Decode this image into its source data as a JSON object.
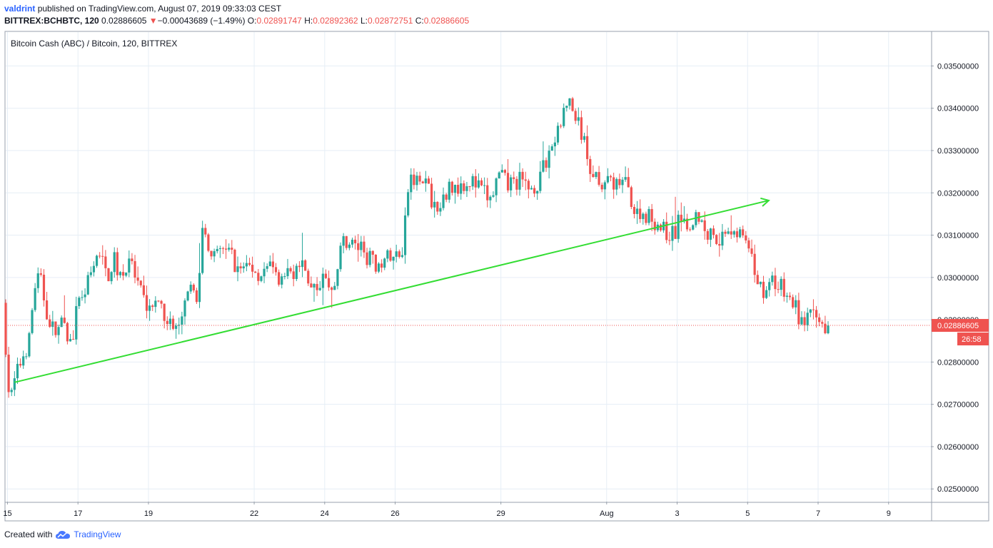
{
  "header": {
    "author": "valdrint",
    "published_text": "published on TradingView.com, August 07, 2019 09:33:03 CEST",
    "symbol": "BITTREX:BCHBTC, 120",
    "last": "0.02886605",
    "change_arrow": "▼",
    "change": "−0.00043689 (−1.49%)",
    "open_label": "O:",
    "open": "0.02891747",
    "high_label": "H:",
    "high": "0.02892362",
    "low_label": "L:",
    "low": "0.02872751",
    "close_label": "C:",
    "close": "0.02886605"
  },
  "footer": {
    "created_with": "Created with",
    "brand": "TradingView",
    "logo_icon": "tradingview-cloud-icon"
  },
  "colors": {
    "up": "#26a69a",
    "down": "#ef5350",
    "trendline": "#33dd33",
    "grid": "#e6eef6",
    "price_line": "#ef5350"
  },
  "chart_data": {
    "type": "candlestick",
    "title": "Bitcoin Cash (ABC) / Bitcoin, 120, BITTREX",
    "interval": "120",
    "ylim": [
      0.0247,
      0.0358
    ],
    "y_ticks": [
      "0.02500000",
      "0.02600000",
      "0.02700000",
      "0.02800000",
      "0.02900000",
      "0.03000000",
      "0.03100000",
      "0.03200000",
      "0.03300000",
      "0.03400000",
      "0.03500000"
    ],
    "x_ticks": [
      {
        "label": "15",
        "day": 15
      },
      {
        "label": "17",
        "day": 17
      },
      {
        "label": "19",
        "day": 19
      },
      {
        "label": "22",
        "day": 22
      },
      {
        "label": "24",
        "day": 24
      },
      {
        "label": "26",
        "day": 26
      },
      {
        "label": "29",
        "day": 29
      },
      {
        "label": "Aug",
        "day": 32
      },
      {
        "label": "3",
        "day": 34
      },
      {
        "label": "5",
        "day": 36
      },
      {
        "label": "7",
        "day": 38
      },
      {
        "label": "9",
        "day": 40
      }
    ],
    "x_range_days": [
      14.95,
      41.2
    ],
    "last_price_label": "0.02886605",
    "last_price": 0.02886605,
    "countdown": "26:58",
    "trendline": {
      "from": {
        "day": 15.2,
        "price": 0.02752
      },
      "to": {
        "day": 36.6,
        "price": 0.03182
      }
    },
    "price_path": [
      [
        14.95,
        0.0294
      ],
      [
        15.0,
        0.0289
      ],
      [
        15.1,
        0.0274
      ],
      [
        15.2,
        0.0272
      ],
      [
        15.3,
        0.0276
      ],
      [
        15.5,
        0.0281
      ],
      [
        15.7,
        0.0285
      ],
      [
        15.85,
        0.0298
      ],
      [
        16.0,
        0.03
      ],
      [
        16.2,
        0.0292
      ],
      [
        16.4,
        0.0287
      ],
      [
        16.6,
        0.0289
      ],
      [
        16.9,
        0.0284
      ],
      [
        17.0,
        0.029
      ],
      [
        17.2,
        0.0296
      ],
      [
        17.45,
        0.03
      ],
      [
        17.7,
        0.0306
      ],
      [
        17.9,
        0.03
      ],
      [
        18.1,
        0.0304
      ],
      [
        18.3,
        0.0301
      ],
      [
        18.6,
        0.0303
      ],
      [
        18.8,
        0.0297
      ],
      [
        19.0,
        0.0294
      ],
      [
        19.3,
        0.0293
      ],
      [
        19.6,
        0.0291
      ],
      [
        19.8,
        0.0287
      ],
      [
        20.0,
        0.029
      ],
      [
        20.3,
        0.0297
      ],
      [
        20.5,
        0.0296
      ],
      [
        20.6,
        0.0311
      ],
      [
        20.8,
        0.0308
      ],
      [
        21.0,
        0.0304
      ],
      [
        21.2,
        0.0307
      ],
      [
        21.4,
        0.0306
      ],
      [
        21.6,
        0.0302
      ],
      [
        21.9,
        0.0303
      ],
      [
        22.2,
        0.0301
      ],
      [
        22.5,
        0.0302
      ],
      [
        22.8,
        0.0299
      ],
      [
        23.1,
        0.0301
      ],
      [
        23.4,
        0.0303
      ],
      [
        23.6,
        0.03
      ],
      [
        23.8,
        0.0297
      ],
      [
        24.0,
        0.03
      ],
      [
        24.2,
        0.0298
      ],
      [
        24.4,
        0.03
      ],
      [
        24.6,
        0.0309
      ],
      [
        24.9,
        0.0308
      ],
      [
        25.2,
        0.0306
      ],
      [
        25.5,
        0.0303
      ],
      [
        25.8,
        0.0305
      ],
      [
        26.0,
        0.0304
      ],
      [
        26.3,
        0.0307
      ],
      [
        26.4,
        0.0321
      ],
      [
        26.6,
        0.0324
      ],
      [
        26.8,
        0.0325
      ],
      [
        27.1,
        0.0319
      ],
      [
        27.3,
        0.0315
      ],
      [
        27.6,
        0.0321
      ],
      [
        27.9,
        0.0322
      ],
      [
        28.2,
        0.0323
      ],
      [
        28.5,
        0.0321
      ],
      [
        28.8,
        0.0318
      ],
      [
        29.0,
        0.0324
      ],
      [
        29.3,
        0.0322
      ],
      [
        29.6,
        0.0323
      ],
      [
        29.9,
        0.0321
      ],
      [
        30.2,
        0.0323
      ],
      [
        30.4,
        0.0329
      ],
      [
        30.6,
        0.0332
      ],
      [
        30.8,
        0.0337
      ],
      [
        31.0,
        0.0342
      ],
      [
        31.2,
        0.0338
      ],
      [
        31.4,
        0.0333
      ],
      [
        31.6,
        0.0326
      ],
      [
        31.8,
        0.0324
      ],
      [
        32.1,
        0.0322
      ],
      [
        32.4,
        0.0323
      ],
      [
        32.7,
        0.0322
      ],
      [
        32.9,
        0.0314
      ],
      [
        33.2,
        0.0315
      ],
      [
        33.5,
        0.0313
      ],
      [
        33.7,
        0.0311
      ],
      [
        34.0,
        0.031
      ],
      [
        34.2,
        0.0315
      ],
      [
        34.4,
        0.0313
      ],
      [
        34.7,
        0.0315
      ],
      [
        34.9,
        0.031
      ],
      [
        35.1,
        0.0311
      ],
      [
        35.3,
        0.0309
      ],
      [
        35.5,
        0.0312
      ],
      [
        35.7,
        0.0311
      ],
      [
        35.9,
        0.031
      ],
      [
        36.1,
        0.0306
      ],
      [
        36.3,
        0.0301
      ],
      [
        36.5,
        0.0297
      ],
      [
        36.8,
        0.0299
      ],
      [
        37.0,
        0.0298
      ],
      [
        37.2,
        0.0295
      ],
      [
        37.4,
        0.0294
      ],
      [
        37.6,
        0.0289
      ],
      [
        37.8,
        0.0291
      ],
      [
        38.0,
        0.029
      ],
      [
        38.2,
        0.0289
      ],
      [
        38.3,
        0.02886605
      ]
    ]
  }
}
